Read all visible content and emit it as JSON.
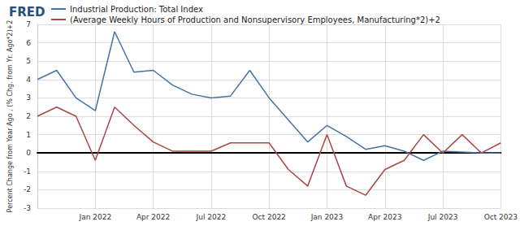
{
  "chart_data": {
    "type": "line",
    "title": "FRED",
    "y_label": "Percent Change from Year Ago , (% Chg. from Yr. Ago*2)+2",
    "categories": [
      null,
      null,
      null,
      "Jan 2022",
      null,
      null,
      "Apr 2022",
      null,
      null,
      "Jul 2022",
      null,
      null,
      "Oct 2022",
      null,
      null,
      "Jan 2023",
      null,
      null,
      "Apr 2023",
      null,
      null,
      "Jul 2023",
      null,
      null,
      "Oct 2023"
    ],
    "series": [
      {
        "name": "Industrial Production: Total Index",
        "color": "#4572a7",
        "values": [
          4.0,
          4.5,
          3.0,
          2.3,
          6.6,
          4.4,
          4.5,
          3.7,
          3.2,
          3.0,
          3.1,
          4.5,
          3.0,
          1.8,
          0.6,
          1.5,
          0.9,
          0.2,
          0.4,
          0.1,
          -0.4,
          0.1,
          0.05,
          0.0,
          0.0
        ]
      },
      {
        "name": "(Average Weekly Hours of Production and Nonsupervisory Employees, Manufacturing*2)+2",
        "color": "#aa4643",
        "values": [
          2.0,
          2.5,
          2.0,
          -0.4,
          2.5,
          1.5,
          0.6,
          0.1,
          0.1,
          0.1,
          0.55,
          0.55,
          0.55,
          -0.9,
          -1.8,
          1.0,
          -1.8,
          -2.3,
          -0.9,
          -0.4,
          1.0,
          0.0,
          1.0,
          0.0,
          0.55
        ]
      }
    ],
    "ylim": [
      -3,
      7
    ],
    "yticks": [
      -3,
      -2,
      -1,
      0,
      1,
      2,
      3,
      4,
      5,
      6,
      7
    ],
    "grid": true,
    "legend": "top-left"
  }
}
